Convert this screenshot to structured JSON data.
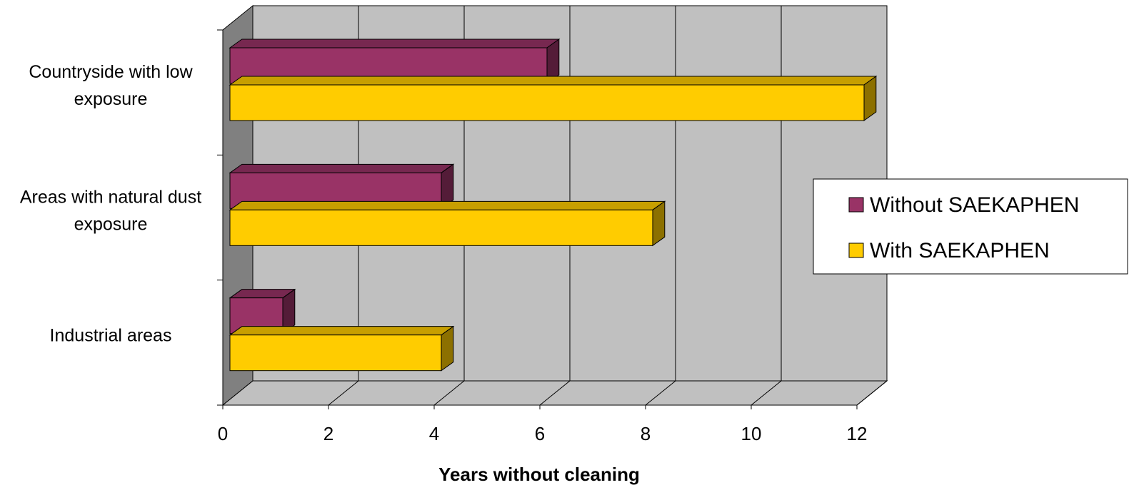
{
  "chart_data": {
    "type": "bar",
    "orientation": "horizontal",
    "style": "3d",
    "categories": [
      "Industrial areas",
      "Areas with natural dust exposure",
      "Countryside with low exposure"
    ],
    "category_label_lines": [
      [
        "Industrial areas"
      ],
      [
        "Areas with natural dust",
        "exposure"
      ],
      [
        "Countryside with low",
        "exposure"
      ]
    ],
    "series": [
      {
        "name": "Without SAEKAPHEN",
        "values": [
          1,
          4,
          6
        ],
        "color": "#993366"
      },
      {
        "name": "With SAEKAPHEN",
        "values": [
          4,
          8,
          12
        ],
        "color": "#FFCC00"
      }
    ],
    "xlabel": "Years without cleaning",
    "ylabel": "",
    "xlim": [
      0,
      12
    ],
    "x_ticks": [
      "0",
      "2",
      "4",
      "6",
      "8",
      "10",
      "12"
    ],
    "grid": true,
    "legend_position": "right",
    "colors": {
      "wall": "#C0C0C0",
      "side_wall": "#808080",
      "grid": "#000000"
    }
  }
}
